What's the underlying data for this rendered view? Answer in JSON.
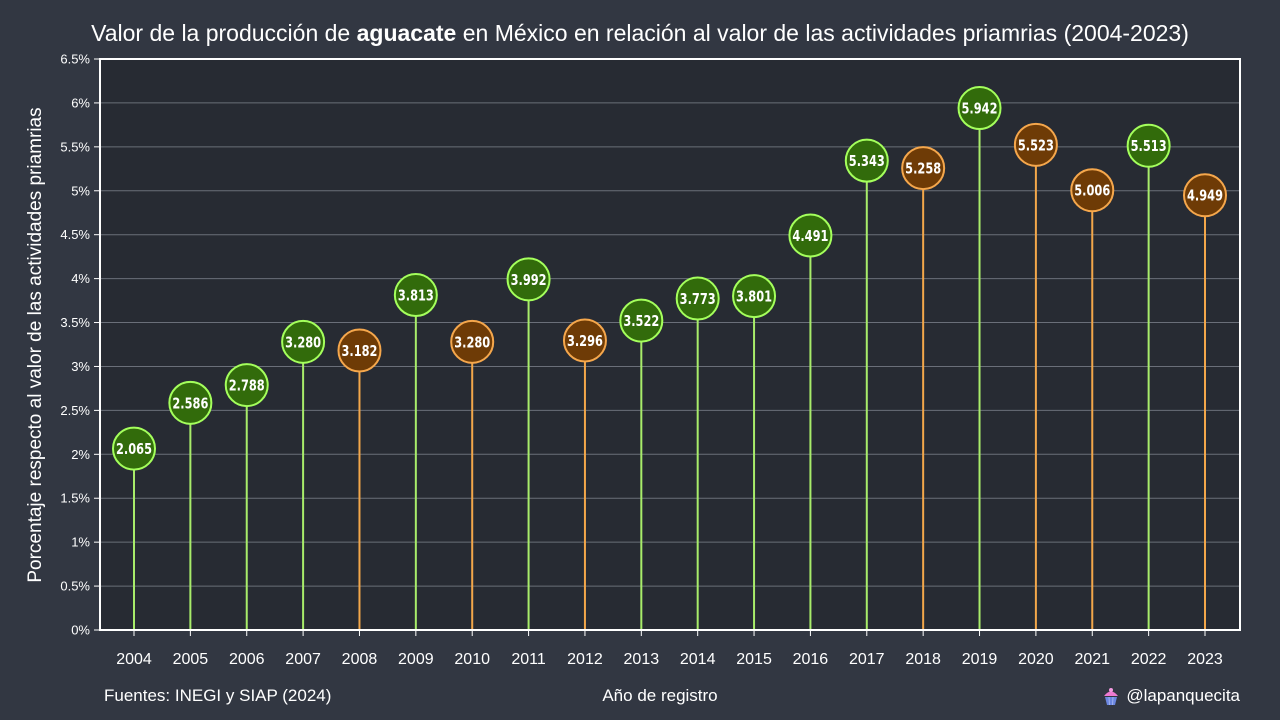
{
  "title": {
    "before": "Valor de la producción de ",
    "bold": "aguacate",
    "after": " en México en relación al valor de las actividades priamrias (2004-2023)"
  },
  "footer": {
    "sources": "Fuentes: INEGI y SIAP (2024)",
    "xlabel": "Año de registro",
    "credit": "@lapanquecita"
  },
  "colors": {
    "background": "#323742",
    "plot_bg": "#272b33",
    "up_line": "#a8ec6a",
    "up_fill": "#326b0b",
    "up_stroke": "#a4ff5c",
    "down_line": "#f3a74a",
    "down_fill": "#6e3b06",
    "down_stroke": "#f5a74c"
  },
  "chart_data": {
    "type": "lollipop",
    "title": "Valor de la producción de aguacate en México en relación al valor de las actividades priamrias (2004-2023)",
    "xlabel": "Año de registro",
    "ylabel": "Porcentaje respecto al valor de las actividades priamrias",
    "ylim": [
      0,
      6.5
    ],
    "yticks": [
      "0%",
      "0.5%",
      "1%",
      "1.5%",
      "2%",
      "2.5%",
      "3%",
      "3.5%",
      "4%",
      "4.5%",
      "5%",
      "5.5%",
      "6%",
      "6.5%"
    ],
    "ytick_values": [
      0,
      0.5,
      1,
      1.5,
      2,
      2.5,
      3,
      3.5,
      4,
      4.5,
      5,
      5.5,
      6,
      6.5
    ],
    "grid": true,
    "categories": [
      "2004",
      "2005",
      "2006",
      "2007",
      "2008",
      "2009",
      "2010",
      "2011",
      "2012",
      "2013",
      "2014",
      "2015",
      "2016",
      "2017",
      "2018",
      "2019",
      "2020",
      "2021",
      "2022",
      "2023"
    ],
    "values": [
      2.065,
      2.586,
      2.788,
      3.28,
      3.182,
      3.813,
      3.28,
      3.992,
      3.296,
      3.522,
      3.773,
      3.801,
      4.491,
      5.343,
      5.258,
      5.942,
      5.523,
      5.006,
      5.513,
      4.949
    ],
    "labels": [
      "2.065",
      "2.586",
      "2.788",
      "3.280",
      "3.182",
      "3.813",
      "3.280",
      "3.992",
      "3.296",
      "3.522",
      "3.773",
      "3.801",
      "4.491",
      "5.343",
      "5.258",
      "5.942",
      "5.523",
      "5.006",
      "5.513",
      "4.949"
    ],
    "direction": [
      "up",
      "up",
      "up",
      "up",
      "down",
      "up",
      "down",
      "up",
      "down",
      "up",
      "up",
      "up",
      "up",
      "up",
      "down",
      "up",
      "down",
      "down",
      "up",
      "down"
    ]
  }
}
